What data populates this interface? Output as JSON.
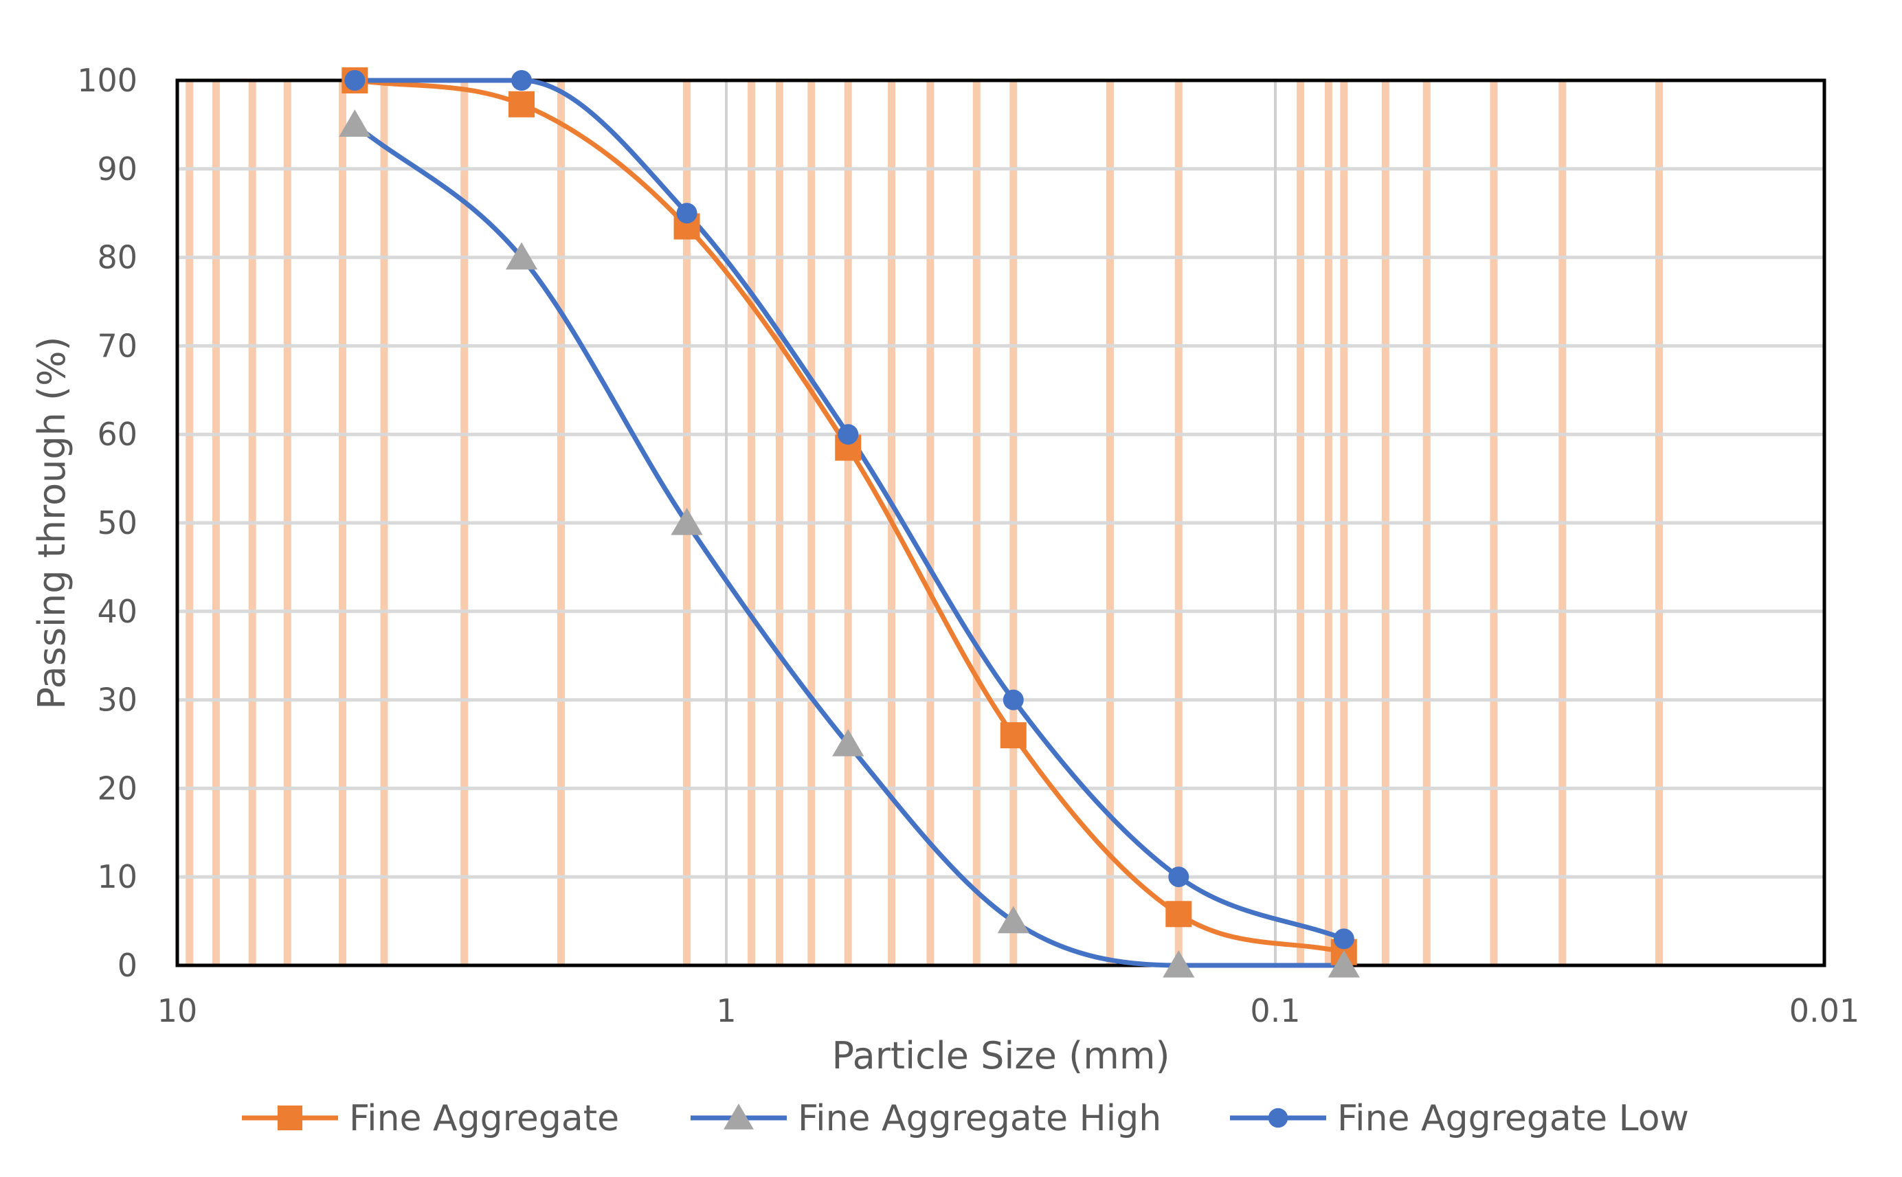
{
  "chart_data": {
    "type": "line",
    "title": "",
    "xlabel": "Particle Size (mm)",
    "ylabel": "Passing through  (%)",
    "x_scale": "log",
    "x_reversed": true,
    "xlim": [
      10,
      0.01
    ],
    "ylim": [
      0,
      100
    ],
    "x_ticks": [
      10,
      1,
      0.1,
      0.01
    ],
    "x_tick_labels": [
      "10",
      "1",
      "0.1",
      "0.01"
    ],
    "y_ticks": [
      0,
      10,
      20,
      30,
      40,
      50,
      60,
      70,
      80,
      90,
      100
    ],
    "y_tick_labels": [
      "0",
      "10",
      "20",
      "30",
      "40",
      "50",
      "60",
      "70",
      "80",
      "90",
      "100"
    ],
    "grid": true,
    "legend_position": "bottom",
    "reference_lines_x": [
      9.5,
      8.5,
      7.3,
      6.3,
      5,
      4.2,
      3,
      2,
      1.18,
      0.9,
      0.8,
      0.7,
      0.6,
      0.5,
      0.425,
      0.35,
      0.3,
      0.2,
      0.15,
      0.09,
      0.08,
      0.075,
      0.063,
      0.053,
      0.04,
      0.03,
      0.02
    ],
    "reference_line_color": "#f8cbad",
    "series": [
      {
        "name": "Fine Aggregate",
        "marker": "square",
        "color": "#ed7d31",
        "x": [
          4.75,
          2.36,
          1.18,
          0.6,
          0.3,
          0.15,
          0.075
        ],
        "y": [
          100,
          97.3,
          83.5,
          58.5,
          26,
          5.8,
          1.5
        ]
      },
      {
        "name": "Fine Aggregate High",
        "marker": "triangle",
        "color": "#4472c4",
        "marker_color": "#a5a5a5",
        "x": [
          4.75,
          2.36,
          1.18,
          0.6,
          0.3,
          0.15,
          0.075
        ],
        "y": [
          95,
          80,
          50,
          25,
          5,
          0,
          0
        ]
      },
      {
        "name": "Fine Aggregate Low",
        "marker": "circle",
        "color": "#4472c4",
        "x": [
          4.75,
          2.36,
          1.18,
          0.6,
          0.3,
          0.15,
          0.075
        ],
        "y": [
          100,
          100,
          85,
          60,
          30,
          10,
          3
        ]
      }
    ]
  }
}
